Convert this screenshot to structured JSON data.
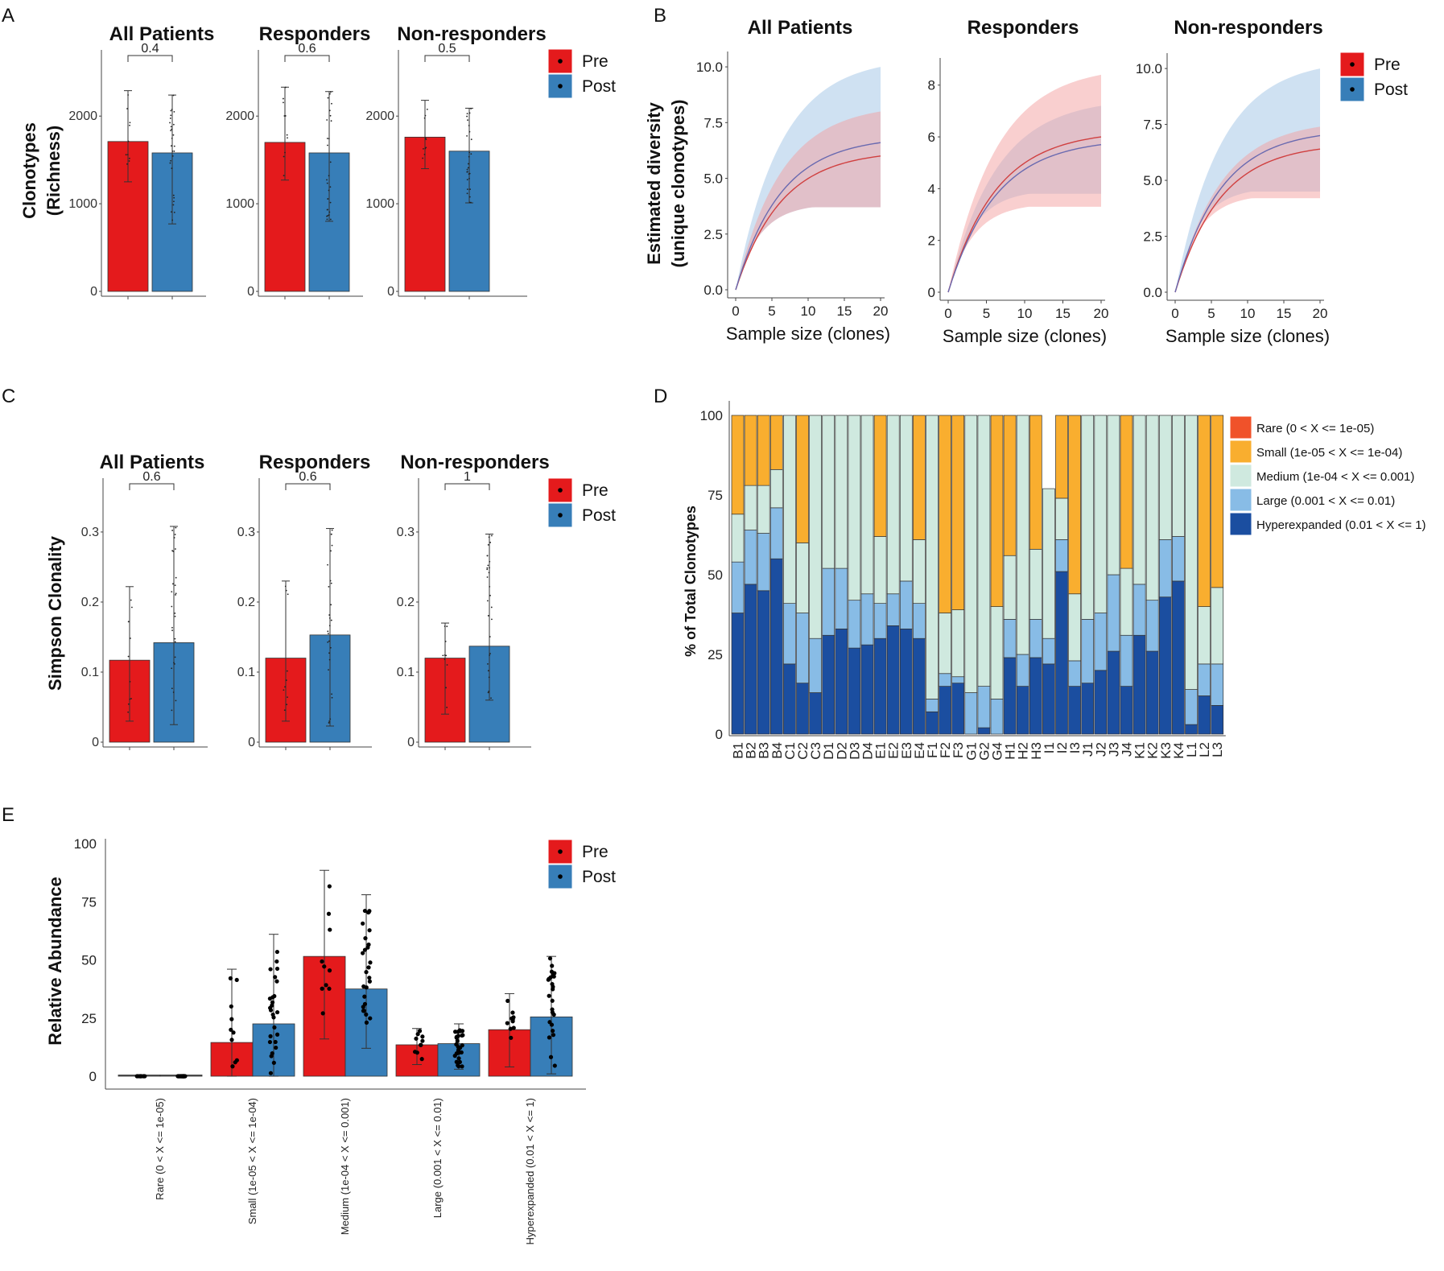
{
  "colors": {
    "pre": "#e41a1c",
    "post": "#377eb8",
    "preLine": "#d04040",
    "postLine": "#6a6ab0",
    "preBand": "#f4a0a0",
    "postBand": "#a8c8e8",
    "rare": "#f0522a",
    "small": "#f9ae2f",
    "medium": "#cfe9df",
    "large": "#88bce6",
    "hyper": "#1b4ea0"
  },
  "legend": {
    "pre": "Pre",
    "post": "Post"
  },
  "panels": {
    "A": {
      "label": "A",
      "ylabel": "Clonotypes",
      "ylabel2": "(Richness)"
    },
    "B": {
      "label": "B",
      "ylabel": "Estimated diversity",
      "ylabel2": "(unique clonotypes)",
      "xlabel": "Sample size (clones)"
    },
    "C": {
      "label": "C",
      "ylabel": "Simpson Clonality"
    },
    "D": {
      "label": "D",
      "ylabel": "% of Total Clonotypes"
    },
    "E": {
      "label": "E",
      "ylabel": "Relative Abundance"
    }
  },
  "chart_data": [
    {
      "id": "A",
      "type": "bar",
      "ylabel": "Clonotypes (Richness)",
      "categories": [
        "Pre",
        "Post"
      ],
      "subplots": [
        {
          "title": "All Patients",
          "pvalue": "0.4",
          "ylim": [
            0,
            2700
          ],
          "yticks": [
            0,
            1000,
            2000
          ],
          "tick_labels": [
            "0",
            "1000",
            "2000"
          ],
          "values": [
            1710,
            1580
          ],
          "err": [
            [
              1250,
              2290
            ],
            [
              770,
              2240
            ]
          ]
        },
        {
          "title": "Responders",
          "pvalue": "0.6",
          "ylim": [
            0,
            2700
          ],
          "yticks": [
            0,
            1000,
            2000
          ],
          "tick_labels": [
            "0",
            "1000",
            "2000"
          ],
          "values": [
            1700,
            1580
          ],
          "err": [
            [
              1270,
              2330
            ],
            [
              800,
              2280
            ]
          ]
        },
        {
          "title": "Non-responders",
          "pvalue": "0.5",
          "ylim": [
            0,
            2700
          ],
          "yticks": [
            0,
            1000,
            2000
          ],
          "tick_labels": [
            "0",
            "1000",
            "2000"
          ],
          "values": [
            1760,
            1600
          ],
          "err": [
            [
              1400,
              2180
            ],
            [
              1010,
              2090
            ]
          ]
        }
      ]
    },
    {
      "id": "B",
      "type": "line",
      "xlabel": "Sample size (clones)",
      "ylabel": "Estimated diversity (unique clonotypes)",
      "x": [
        0,
        20
      ],
      "subplots": [
        {
          "title": "All Patients",
          "ylim": [
            0,
            10.4
          ],
          "yticks": [
            0,
            2.5,
            5,
            7.5,
            10
          ],
          "tick_labels": [
            "0.0",
            "2.5",
            "5.0",
            "7.5",
            "10.0"
          ],
          "xticks": [
            0,
            5,
            10,
            15,
            20
          ],
          "x_tick_labels": [
            "0",
            "5",
            "10",
            "15",
            "20"
          ],
          "pre": {
            "end": 6.0,
            "lo": 3.7,
            "hi": 8.0
          },
          "post": {
            "end": 6.6,
            "lo": 3.7,
            "hi": 10.0
          }
        },
        {
          "title": "Responders",
          "ylim": [
            0,
            8.8
          ],
          "yticks": [
            0,
            2,
            4,
            6,
            8
          ],
          "tick_labels": [
            "0",
            "2",
            "4",
            "6",
            "8"
          ],
          "xticks": [
            0,
            5,
            10,
            15,
            20
          ],
          "x_tick_labels": [
            "0",
            "5",
            "10",
            "15",
            "20"
          ],
          "pre": {
            "end": 6.0,
            "lo": 3.3,
            "hi": 8.4
          },
          "post": {
            "end": 5.7,
            "lo": 3.8,
            "hi": 7.2
          }
        },
        {
          "title": "Non-responders",
          "ylim": [
            0,
            10.4
          ],
          "yticks": [
            0,
            2.5,
            5,
            7.5,
            10
          ],
          "tick_labels": [
            "0.0",
            "2.5",
            "5.0",
            "7.5",
            "10.0"
          ],
          "xticks": [
            0,
            5,
            10,
            15,
            20
          ],
          "x_tick_labels": [
            "0",
            "5",
            "10",
            "15",
            "20"
          ],
          "pre": {
            "end": 6.4,
            "lo": 4.2,
            "hi": 7.4
          },
          "post": {
            "end": 7.0,
            "lo": 4.5,
            "hi": 10.0
          }
        }
      ]
    },
    {
      "id": "C",
      "type": "bar",
      "ylabel": "Simpson Clonality",
      "categories": [
        "Pre",
        "Post"
      ],
      "subplots": [
        {
          "title": "All Patients",
          "pvalue": "0.6",
          "ylim": [
            0,
            0.37
          ],
          "yticks": [
            0,
            0.1,
            0.2,
            0.3
          ],
          "tick_labels": [
            "0",
            "0.1",
            "0.2",
            "0.3"
          ],
          "values": [
            0.117,
            0.142
          ],
          "err": [
            [
              0.03,
              0.222
            ],
            [
              0.025,
              0.308
            ]
          ]
        },
        {
          "title": "Responders",
          "pvalue": "0.6",
          "ylim": [
            0,
            0.37
          ],
          "yticks": [
            0,
            0.1,
            0.2,
            0.3
          ],
          "tick_labels": [
            "0",
            "0.1",
            "0.2",
            "0.3"
          ],
          "values": [
            0.12,
            0.153
          ],
          "err": [
            [
              0.03,
              0.23
            ],
            [
              0.023,
              0.305
            ]
          ]
        },
        {
          "title": "Non-responders",
          "pvalue": "1",
          "ylim": [
            0,
            0.37
          ],
          "yticks": [
            0,
            0.1,
            0.2,
            0.3
          ],
          "tick_labels": [
            "0",
            "0.1",
            "0.2",
            "0.3"
          ],
          "values": [
            0.12,
            0.137
          ],
          "err": [
            [
              0.04,
              0.17
            ],
            [
              0.06,
              0.297
            ]
          ]
        }
      ]
    },
    {
      "id": "D",
      "type": "bar",
      "stacked": true,
      "ylabel": "% of Total Clonotypes",
      "ylim": [
        0,
        100
      ],
      "yticks": [
        0,
        25,
        50,
        75,
        100
      ],
      "tick_labels": [
        "0",
        "25",
        "50",
        "75",
        "100"
      ],
      "categories": [
        "B1",
        "B2",
        "B3",
        "B4",
        "C1",
        "C2",
        "C3",
        "D1",
        "D2",
        "D3",
        "D4",
        "E1",
        "E2",
        "E3",
        "E4",
        "F1",
        "F2",
        "F3",
        "G1",
        "G2",
        "G4",
        "H1",
        "H2",
        "H3",
        "I1",
        "I2",
        "I3",
        "J1",
        "J2",
        "J3",
        "J4",
        "K1",
        "K2",
        "K3",
        "K4",
        "L1",
        "L2",
        "L3"
      ],
      "series": [
        {
          "name": "Rare (0 < X <= 1e-05)",
          "key": "rare",
          "values": [
            0,
            0,
            0,
            0,
            0,
            0,
            0,
            0,
            0,
            0,
            0,
            0,
            0,
            0,
            0,
            0,
            0,
            0,
            0,
            0,
            0,
            0,
            0,
            0,
            0,
            0,
            0,
            0,
            0,
            0,
            0,
            0,
            0,
            0,
            0,
            0,
            0,
            0
          ]
        },
        {
          "name": "Small (1e-05 < X <= 1e-04)",
          "key": "small",
          "values": [
            31,
            22,
            22,
            17,
            0,
            40,
            0,
            0,
            0,
            0,
            0,
            38,
            0,
            0,
            39,
            0,
            62,
            61,
            0,
            0,
            60,
            44,
            0,
            42,
            0,
            26,
            56,
            0,
            0,
            0,
            48,
            0,
            0,
            0,
            0,
            0,
            60,
            54
          ]
        },
        {
          "name": "Medium (1e-04 < X <= 0.001)",
          "key": "medium",
          "values": [
            15,
            14,
            15,
            12,
            59,
            22,
            70,
            48,
            48,
            58,
            56,
            21,
            56,
            52,
            20,
            89,
            19,
            21,
            87,
            85,
            29,
            20,
            75,
            22,
            47,
            13,
            21,
            64,
            62,
            50,
            21,
            53,
            58,
            39,
            38,
            86,
            18,
            24
          ]
        },
        {
          "name": "Large (0.001 < X <= 0.01)",
          "key": "large",
          "values": [
            16,
            17,
            18,
            16,
            19,
            22,
            17,
            21,
            19,
            15,
            16,
            11,
            10,
            15,
            11,
            4,
            4,
            2,
            13,
            13,
            11,
            12,
            10,
            12,
            8,
            10,
            8,
            20,
            18,
            24,
            16,
            16,
            16,
            18,
            14,
            11,
            10,
            13
          ]
        },
        {
          "name": "Hyperexpanded (0.01 < X <= 1)",
          "key": "hyper",
          "values": [
            38,
            47,
            45,
            55,
            22,
            16,
            13,
            31,
            33,
            27,
            28,
            30,
            34,
            33,
            30,
            7,
            15,
            16,
            0,
            2,
            0,
            24,
            15,
            24,
            22,
            51,
            15,
            16,
            20,
            26,
            15,
            31,
            26,
            43,
            48,
            3,
            12,
            9
          ]
        }
      ]
    },
    {
      "id": "E",
      "type": "bar",
      "ylabel": "Relative Abundance",
      "ylim": [
        0,
        100
      ],
      "yticks": [
        0,
        25,
        50,
        75,
        100
      ],
      "tick_labels": [
        "0",
        "25",
        "50",
        "75",
        "100"
      ],
      "categories": [
        "Rare (0 < X <= 1e-05)",
        "Small (1e-05 < X <= 1e-04)",
        "Medium (1e-04 < X <= 0.001)",
        "Large (0.001 < X <= 0.01)",
        "Hyperexpanded (0.01 < X <= 1)"
      ],
      "series": [
        {
          "name": "Pre",
          "values": [
            0,
            14.5,
            51.5,
            13.5,
            20
          ],
          "err": [
            [
              0,
              0
            ],
            [
              0,
              46
            ],
            [
              16,
              88.5
            ],
            [
              5,
              20.5
            ],
            [
              4,
              35.5
            ]
          ]
        },
        {
          "name": "Post",
          "values": [
            0,
            22.5,
            37.5,
            14,
            25.5
          ],
          "err": [
            [
              0,
              0
            ],
            [
              0,
              61
            ],
            [
              12,
              78
            ],
            [
              3,
              22.5
            ],
            [
              1,
              51.5
            ]
          ]
        }
      ]
    }
  ]
}
